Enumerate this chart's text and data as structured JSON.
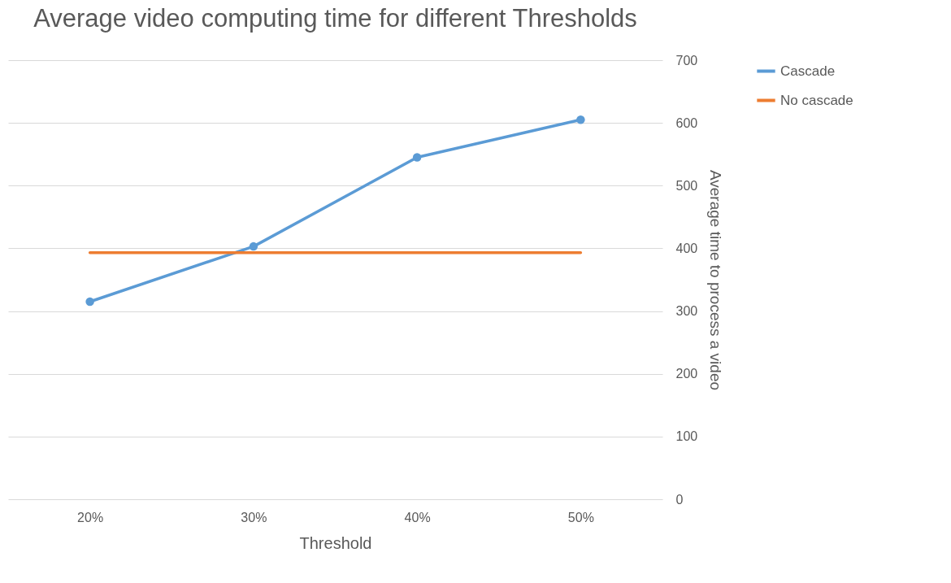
{
  "chart_data": {
    "type": "line",
    "title": "Average video computing time for different Thresholds",
    "xlabel": "Threshold",
    "ylabel": "Average time to process a video",
    "categories": [
      "20%",
      "30%",
      "40%",
      "50%"
    ],
    "series": [
      {
        "name": "Cascade",
        "color": "#5b9bd5",
        "marker": "circle",
        "values": [
          315,
          403,
          545,
          605
        ]
      },
      {
        "name": "No cascade",
        "color": "#ed7d31",
        "marker": "none",
        "values": [
          393,
          393,
          393,
          393
        ]
      }
    ],
    "ylim": [
      0,
      700
    ],
    "yticks": [
      0,
      100,
      200,
      300,
      400,
      500,
      600,
      700
    ],
    "grid": "y",
    "legend": "right",
    "line_style": "solid"
  }
}
